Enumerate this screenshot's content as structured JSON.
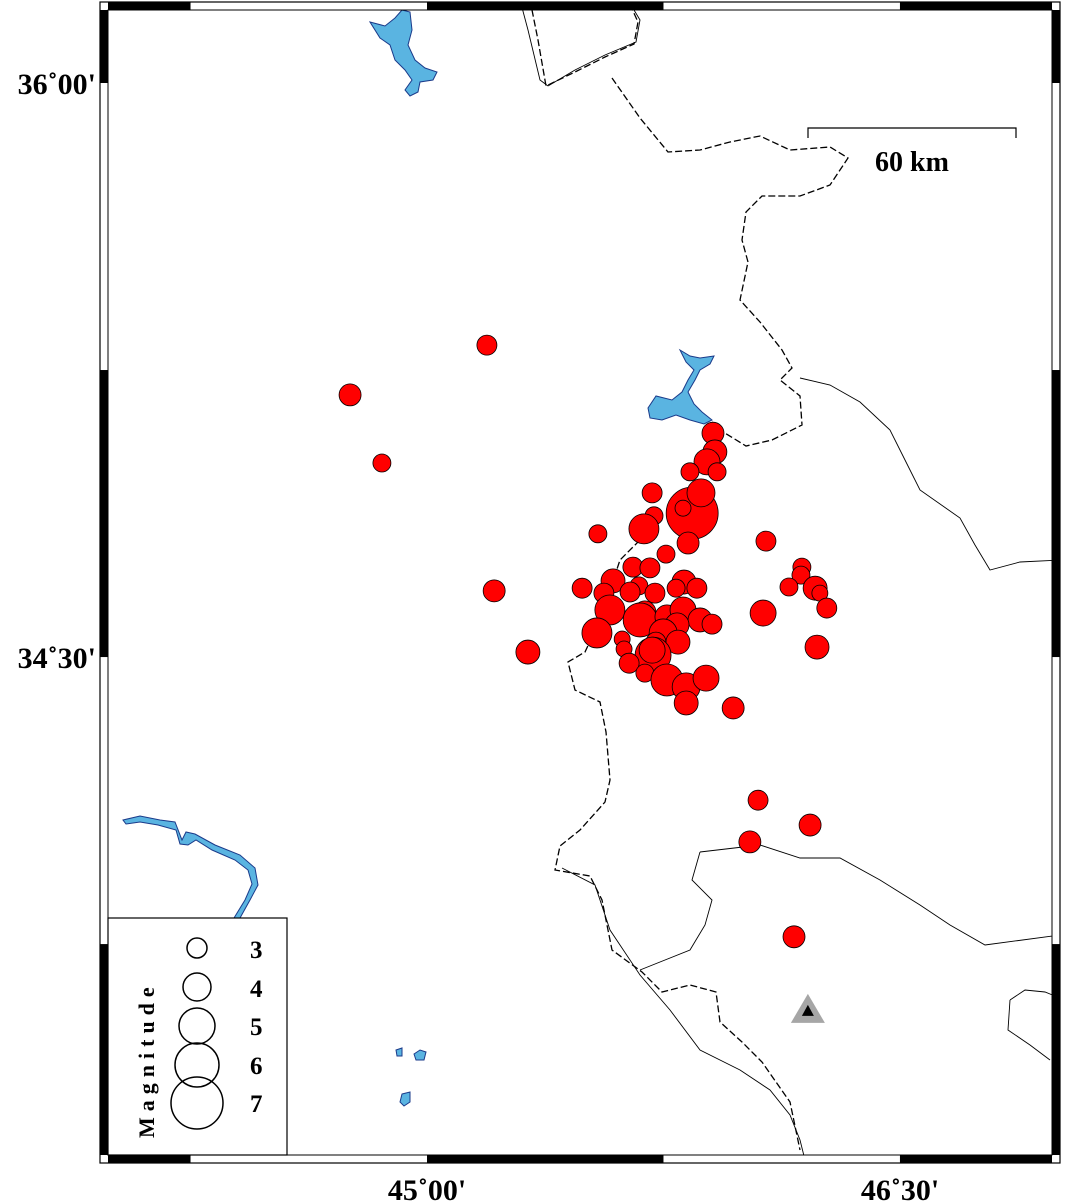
{
  "map": {
    "lon_range": [
      44.0,
      47.0
    ],
    "lat_range": [
      33.2,
      36.2
    ],
    "x_tick_labels": [
      {
        "lon": 45.0,
        "label": "45˚00'"
      },
      {
        "lon": 46.5,
        "label": "46˚30'"
      }
    ],
    "y_tick_labels": [
      {
        "lat": 36.0,
        "label": "36˚00'"
      },
      {
        "lat": 34.5,
        "label": "34˚30'"
      }
    ],
    "frame_style": "alternating black/white fancy frame"
  },
  "scale_bar": {
    "label": "60 km"
  },
  "legend": {
    "title": "Magnitude",
    "magnitudes": [
      3,
      4,
      5,
      6,
      7
    ],
    "labels": [
      "3",
      "4",
      "5",
      "6",
      "7"
    ],
    "placement": "bottom-left"
  },
  "colors": {
    "event_fill": "#ff0000",
    "event_stroke": "#000000",
    "water": "#5ab4e1",
    "station_outer": "#a6a6a6",
    "station_inner": "#000000"
  },
  "station": {
    "lon": 46.208,
    "lat": 33.578,
    "icon": "triangle"
  },
  "events": [
    {
      "lon": 45.907,
      "lat": 35.085,
      "mag": 3.25
    },
    {
      "lon": 45.913,
      "lat": 35.036,
      "mag": 3.5
    },
    {
      "lon": 45.888,
      "lat": 35.01,
      "mag": 3.75
    },
    {
      "lon": 45.834,
      "lat": 34.984,
      "mag": 2.75
    },
    {
      "lon": 45.92,
      "lat": 34.984,
      "mag": 2.75
    },
    {
      "lon": 45.714,
      "lat": 34.929,
      "mag": 3.0
    },
    {
      "lon": 45.841,
      "lat": 34.876,
      "mag": 7.0
    },
    {
      "lon": 45.869,
      "lat": 34.929,
      "mag": 4.0
    },
    {
      "lon": 45.812,
      "lat": 34.889,
      "mag": 2.5
    },
    {
      "lon": 45.72,
      "lat": 34.869,
      "mag": 2.75
    },
    {
      "lon": 45.688,
      "lat": 34.835,
      "mag": 4.25
    },
    {
      "lon": 45.542,
      "lat": 34.822,
      "mag": 2.75
    },
    {
      "lon": 45.828,
      "lat": 34.798,
      "mag": 3.25
    },
    {
      "lon": 46.075,
      "lat": 34.803,
      "mag": 3.0
    },
    {
      "lon": 45.758,
      "lat": 34.769,
      "mag": 2.75
    },
    {
      "lon": 45.653,
      "lat": 34.735,
      "mag": 3.0
    },
    {
      "lon": 45.707,
      "lat": 34.733,
      "mag": 3.0
    },
    {
      "lon": 45.59,
      "lat": 34.699,
      "mag": 3.5
    },
    {
      "lon": 45.492,
      "lat": 34.68,
      "mag": 3.0
    },
    {
      "lon": 45.672,
      "lat": 34.686,
      "mag": 2.75
    },
    {
      "lon": 45.644,
      "lat": 34.67,
      "mag": 3.0
    },
    {
      "lon": 45.561,
      "lat": 34.667,
      "mag": 3.0
    },
    {
      "lon": 45.723,
      "lat": 34.667,
      "mag": 3.0
    },
    {
      "lon": 45.815,
      "lat": 34.696,
      "mag": 3.5
    },
    {
      "lon": 45.79,
      "lat": 34.68,
      "mag": 2.75
    },
    {
      "lon": 45.856,
      "lat": 34.68,
      "mag": 3.0
    },
    {
      "lon": 45.58,
      "lat": 34.623,
      "mag": 4.25
    },
    {
      "lon": 45.691,
      "lat": 34.618,
      "mag": 3.25
    },
    {
      "lon": 45.676,
      "lat": 34.597,
      "mag": 4.75
    },
    {
      "lon": 45.761,
      "lat": 34.605,
      "mag": 3.5
    },
    {
      "lon": 45.812,
      "lat": 34.623,
      "mag": 3.75
    },
    {
      "lon": 45.866,
      "lat": 34.597,
      "mag": 3.5
    },
    {
      "lon": 45.904,
      "lat": 34.586,
      "mag": 3.0
    },
    {
      "lon": 45.539,
      "lat": 34.563,
      "mag": 4.25
    },
    {
      "lon": 45.793,
      "lat": 34.584,
      "mag": 3.5
    },
    {
      "lon": 45.749,
      "lat": 34.563,
      "mag": 4.0
    },
    {
      "lon": 45.796,
      "lat": 34.539,
      "mag": 3.5
    },
    {
      "lon": 45.619,
      "lat": 34.547,
      "mag": 2.5
    },
    {
      "lon": 45.625,
      "lat": 34.521,
      "mag": 2.5
    },
    {
      "lon": 45.726,
      "lat": 34.539,
      "mag": 3.0
    },
    {
      "lon": 45.717,
      "lat": 34.505,
      "mag": 5.0
    },
    {
      "lon": 45.714,
      "lat": 34.518,
      "mag": 3.75
    },
    {
      "lon": 45.641,
      "lat": 34.484,
      "mag": 3.0
    },
    {
      "lon": 45.691,
      "lat": 34.458,
      "mag": 2.75
    },
    {
      "lon": 45.761,
      "lat": 34.44,
      "mag": 4.5
    },
    {
      "lon": 45.822,
      "lat": 34.422,
      "mag": 4.0
    },
    {
      "lon": 45.885,
      "lat": 34.445,
      "mag": 3.75
    },
    {
      "lon": 45.822,
      "lat": 34.38,
      "mag": 3.5
    },
    {
      "lon": 45.971,
      "lat": 34.367,
      "mag": 3.25
    },
    {
      "lon": 46.066,
      "lat": 34.615,
      "mag": 3.75
    },
    {
      "lon": 46.189,
      "lat": 34.735,
      "mag": 2.75
    },
    {
      "lon": 46.186,
      "lat": 34.714,
      "mag": 2.75
    },
    {
      "lon": 46.148,
      "lat": 34.683,
      "mag": 2.75
    },
    {
      "lon": 46.231,
      "lat": 34.68,
      "mag": 3.5
    },
    {
      "lon": 46.246,
      "lat": 34.667,
      "mag": 2.5
    },
    {
      "lon": 46.268,
      "lat": 34.628,
      "mag": 3.0
    },
    {
      "lon": 46.237,
      "lat": 34.526,
      "mag": 3.5
    },
    {
      "lon": 45.19,
      "lat": 35.315,
      "mag": 3.0
    },
    {
      "lon": 44.756,
      "lat": 35.185,
      "mag": 3.25
    },
    {
      "lon": 44.857,
      "lat": 35.007,
      "mag": 2.75
    },
    {
      "lon": 45.213,
      "lat": 34.673,
      "mag": 3.25
    },
    {
      "lon": 45.32,
      "lat": 34.513,
      "mag": 3.5
    },
    {
      "lon": 46.05,
      "lat": 34.126,
      "mag": 3.0
    },
    {
      "lon": 46.215,
      "lat": 34.061,
      "mag": 3.25
    },
    {
      "lon": 46.024,
      "lat": 34.017,
      "mag": 3.25
    },
    {
      "lon": 46.164,
      "lat": 33.769,
      "mag": 3.25
    }
  ]
}
